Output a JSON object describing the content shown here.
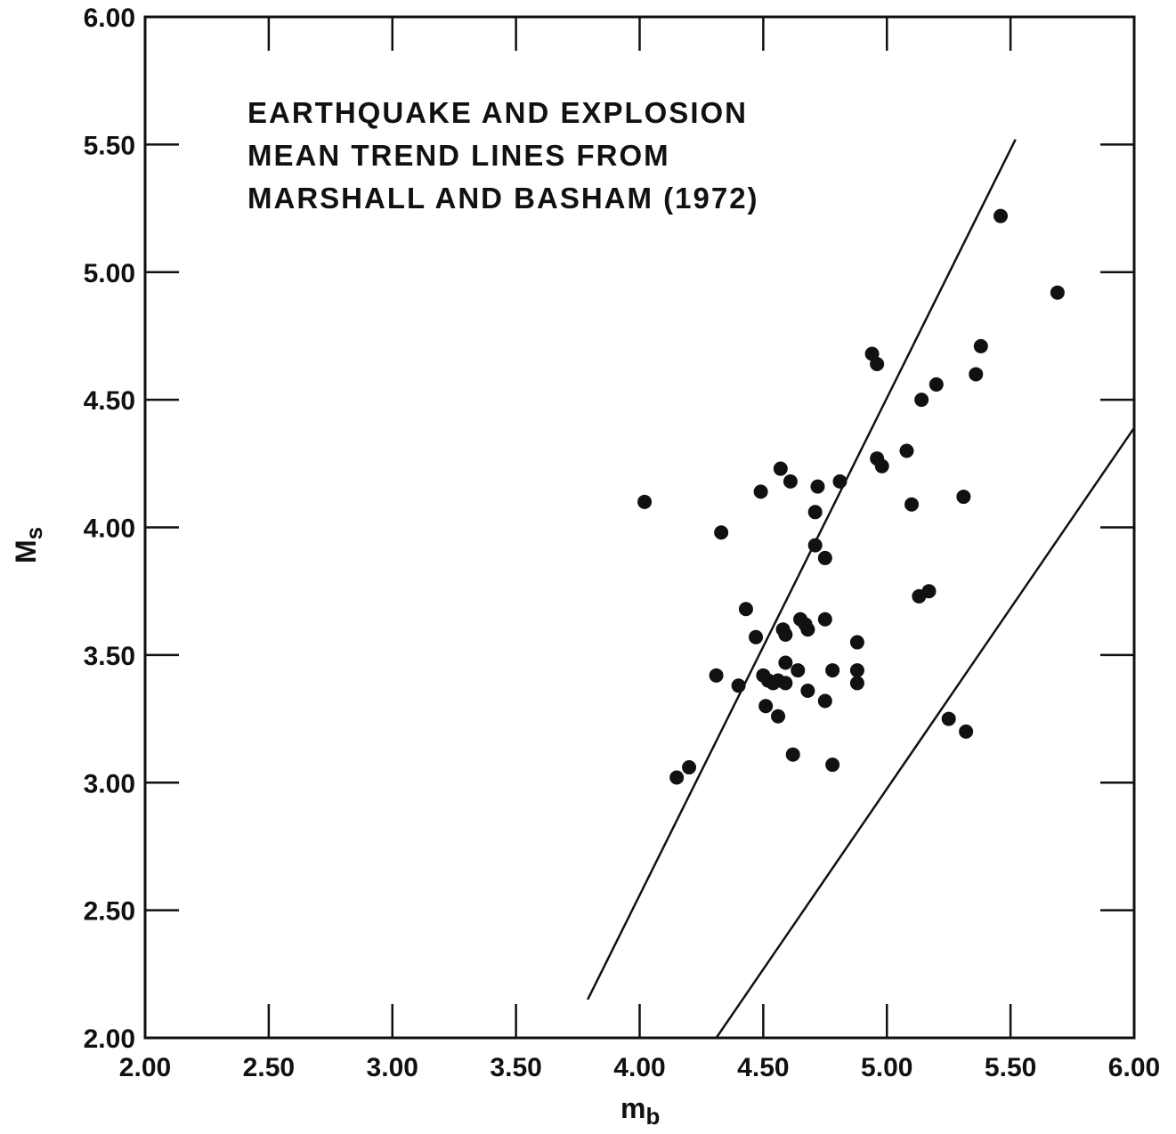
{
  "chart_data": {
    "type": "scatter",
    "title_lines": [
      "EARTHQUAKE AND EXPLOSION",
      "MEAN TREND LINES FROM",
      "MARSHALL AND BASHAM (1972)"
    ],
    "xlabel": "m",
    "xlabel_sub": "b",
    "ylabel": "M",
    "ylabel_sub": "s",
    "xlim": [
      2.0,
      6.0
    ],
    "ylim": [
      2.0,
      6.0
    ],
    "x_ticks": [
      "2.00",
      "2.50",
      "3.00",
      "3.50",
      "4.00",
      "4.50",
      "5.00",
      "5.50",
      "6.00"
    ],
    "y_ticks": [
      "2.00",
      "2.50",
      "3.00",
      "3.50",
      "4.00",
      "4.50",
      "5.00",
      "5.50",
      "6.00"
    ],
    "grid": false,
    "colors": {
      "marks": "#111111",
      "background": "#ffffff"
    },
    "trend_lines": [
      {
        "x": [
          3.79,
          5.52
        ],
        "y": [
          2.15,
          5.52
        ]
      },
      {
        "x": [
          4.31,
          6.0
        ],
        "y": [
          2.0,
          4.39
        ]
      }
    ],
    "points": [
      {
        "x": 4.02,
        "y": 4.1
      },
      {
        "x": 4.33,
        "y": 3.98
      },
      {
        "x": 4.43,
        "y": 3.68
      },
      {
        "x": 4.47,
        "y": 3.57
      },
      {
        "x": 4.49,
        "y": 4.14
      },
      {
        "x": 4.57,
        "y": 4.23
      },
      {
        "x": 4.61,
        "y": 4.18
      },
      {
        "x": 4.72,
        "y": 4.16
      },
      {
        "x": 4.71,
        "y": 4.06
      },
      {
        "x": 4.81,
        "y": 4.18
      },
      {
        "x": 4.71,
        "y": 3.93
      },
      {
        "x": 4.75,
        "y": 3.88
      },
      {
        "x": 4.58,
        "y": 3.6
      },
      {
        "x": 4.59,
        "y": 3.58
      },
      {
        "x": 4.65,
        "y": 3.64
      },
      {
        "x": 4.67,
        "y": 3.62
      },
      {
        "x": 4.68,
        "y": 3.6
      },
      {
        "x": 4.75,
        "y": 3.64
      },
      {
        "x": 4.31,
        "y": 3.42
      },
      {
        "x": 4.4,
        "y": 3.38
      },
      {
        "x": 4.5,
        "y": 3.42
      },
      {
        "x": 4.52,
        "y": 3.4
      },
      {
        "x": 4.54,
        "y": 3.39
      },
      {
        "x": 4.56,
        "y": 3.4
      },
      {
        "x": 4.59,
        "y": 3.39
      },
      {
        "x": 4.59,
        "y": 3.47
      },
      {
        "x": 4.64,
        "y": 3.44
      },
      {
        "x": 4.68,
        "y": 3.36
      },
      {
        "x": 4.51,
        "y": 3.3
      },
      {
        "x": 4.56,
        "y": 3.26
      },
      {
        "x": 4.75,
        "y": 3.32
      },
      {
        "x": 4.78,
        "y": 3.44
      },
      {
        "x": 4.62,
        "y": 3.11
      },
      {
        "x": 4.78,
        "y": 3.07
      },
      {
        "x": 4.15,
        "y": 3.02
      },
      {
        "x": 4.2,
        "y": 3.06
      },
      {
        "x": 4.88,
        "y": 3.55
      },
      {
        "x": 4.88,
        "y": 3.44
      },
      {
        "x": 4.88,
        "y": 3.39
      },
      {
        "x": 4.94,
        "y": 4.68
      },
      {
        "x": 4.96,
        "y": 4.64
      },
      {
        "x": 4.96,
        "y": 4.27
      },
      {
        "x": 4.98,
        "y": 4.24
      },
      {
        "x": 5.08,
        "y": 4.3
      },
      {
        "x": 5.1,
        "y": 4.09
      },
      {
        "x": 5.14,
        "y": 4.5
      },
      {
        "x": 5.2,
        "y": 4.56
      },
      {
        "x": 5.13,
        "y": 3.73
      },
      {
        "x": 5.17,
        "y": 3.75
      },
      {
        "x": 5.31,
        "y": 4.12
      },
      {
        "x": 5.36,
        "y": 4.6
      },
      {
        "x": 5.38,
        "y": 4.71
      },
      {
        "x": 5.46,
        "y": 5.22
      },
      {
        "x": 5.69,
        "y": 4.92
      },
      {
        "x": 5.25,
        "y": 3.25
      },
      {
        "x": 5.32,
        "y": 3.2
      }
    ]
  }
}
